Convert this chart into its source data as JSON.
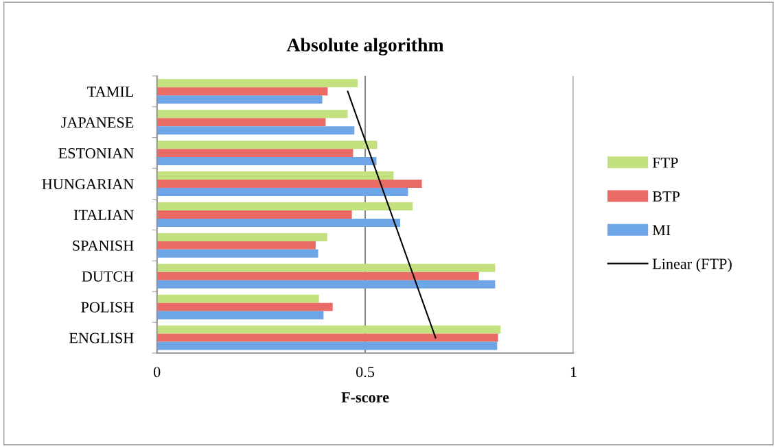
{
  "chart_data": {
    "type": "bar",
    "orientation": "horizontal",
    "title": "Absolute algorithm",
    "xlabel": "F-score",
    "categories": [
      "TAMIL",
      "JAPANESE",
      "ESTONIAN",
      "HUNGARIAN",
      "ITALIAN",
      "SPANISH",
      "DUTCH",
      "POLISH",
      "ENGLISH"
    ],
    "series": [
      {
        "name": "FTP",
        "color": "#c4e17f",
        "values": [
          0.482,
          0.458,
          0.529,
          0.568,
          0.614,
          0.409,
          0.812,
          0.389,
          0.825
        ]
      },
      {
        "name": "BTP",
        "color": "#ea6b66",
        "values": [
          0.41,
          0.405,
          0.471,
          0.636,
          0.468,
          0.381,
          0.773,
          0.422,
          0.819
        ]
      },
      {
        "name": "MI",
        "color": "#6ea5e6",
        "values": [
          0.397,
          0.474,
          0.527,
          0.603,
          0.584,
          0.387,
          0.812,
          0.4,
          0.817
        ]
      },
      {
        "name": "Linear (FTP)",
        "type": "line",
        "color": "#000000",
        "values": [
          0.458,
          null,
          null,
          null,
          null,
          null,
          null,
          null,
          0.669
        ]
      }
    ],
    "xlim": [
      0,
      1
    ],
    "xticks": [
      0,
      0.5,
      1
    ],
    "grid": "x",
    "legend": "right"
  }
}
